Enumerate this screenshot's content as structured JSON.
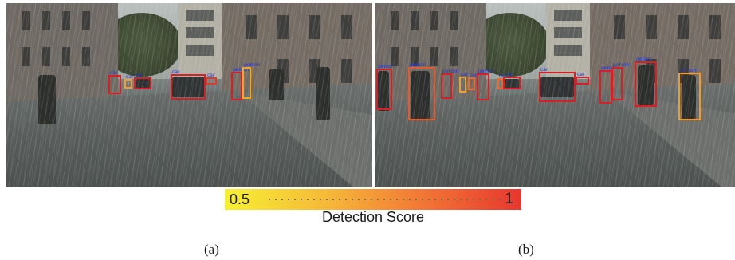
{
  "figure": {
    "panels": [
      {
        "caption": "(a)",
        "detections": [
          {
            "label": "car",
            "color": "#d81f26"
          },
          {
            "label": "car",
            "color": "#f0a030"
          },
          {
            "label": "car",
            "color": "#d81f26"
          },
          {
            "label": "car",
            "color": "#d81f26"
          },
          {
            "label": "car",
            "color": "#e03a2a"
          },
          {
            "label": "person",
            "color": "#d81f26"
          },
          {
            "label": "person",
            "color": "#f2a926"
          }
        ]
      },
      {
        "caption": "(b)",
        "detections": [
          {
            "label": "person",
            "color": "#d81f26"
          },
          {
            "label": "person",
            "color": "#e85a2c"
          },
          {
            "label": "person",
            "color": "#d81f26"
          },
          {
            "label": "car",
            "color": "#f0a030"
          },
          {
            "label": "car",
            "color": "#f06a30"
          },
          {
            "label": "person",
            "color": "#d81f26"
          },
          {
            "label": "car",
            "color": "#f06a30"
          },
          {
            "label": "car",
            "color": "#d81f26"
          },
          {
            "label": "car",
            "color": "#d81f26"
          },
          {
            "label": "car",
            "color": "#d81f26"
          },
          {
            "label": "person",
            "color": "#d81f26"
          },
          {
            "label": "person",
            "color": "#d81f26"
          },
          {
            "label": "person",
            "color": "#d81f26"
          },
          {
            "label": "person",
            "color": "#f29a26"
          }
        ]
      }
    ],
    "colorbar": {
      "min_label": "0.5",
      "max_label": "1",
      "title": "Detection Score",
      "colors": [
        "#f7f032",
        "#f6b838",
        "#f27a36",
        "#e8362e"
      ]
    }
  }
}
